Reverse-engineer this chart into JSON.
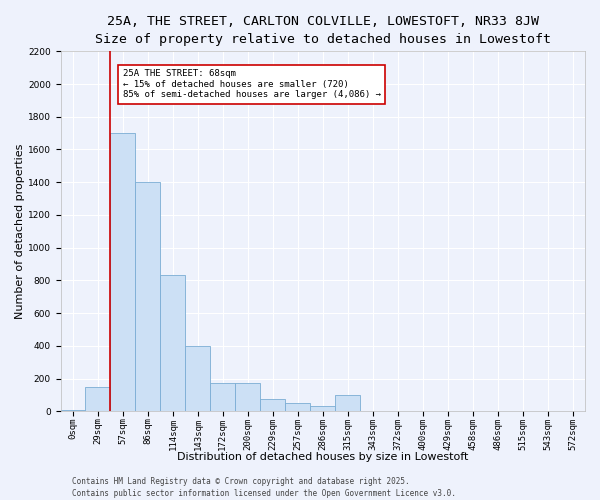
{
  "title_line1": "25A, THE STREET, CARLTON COLVILLE, LOWESTOFT, NR33 8JW",
  "title_line2": "Size of property relative to detached houses in Lowestoft",
  "xlabel": "Distribution of detached houses by size in Lowestoft",
  "ylabel": "Number of detached properties",
  "bar_color": "#cce0f5",
  "bar_edge_color": "#7aadd4",
  "categories": [
    "0sqm",
    "29sqm",
    "57sqm",
    "86sqm",
    "114sqm",
    "143sqm",
    "172sqm",
    "200sqm",
    "229sqm",
    "257sqm",
    "286sqm",
    "315sqm",
    "343sqm",
    "372sqm",
    "400sqm",
    "429sqm",
    "458sqm",
    "486sqm",
    "515sqm",
    "543sqm",
    "572sqm"
  ],
  "values": [
    10,
    150,
    1700,
    1400,
    830,
    400,
    170,
    170,
    75,
    50,
    30,
    100,
    0,
    0,
    0,
    0,
    0,
    0,
    0,
    0,
    0
  ],
  "ylim": [
    0,
    2200
  ],
  "yticks": [
    0,
    200,
    400,
    600,
    800,
    1000,
    1200,
    1400,
    1600,
    1800,
    2000,
    2200
  ],
  "vline_x_index": 2,
  "vline_color": "#cc0000",
  "annot_line1": "25A THE STREET: 68sqm",
  "annot_line2": "← 15% of detached houses are smaller (720)",
  "annot_line3": "85% of semi-detached houses are larger (4,086) →",
  "annotation_box_color": "#ffffff",
  "annotation_box_edge": "#cc0000",
  "footer_line1": "Contains HM Land Registry data © Crown copyright and database right 2025.",
  "footer_line2": "Contains public sector information licensed under the Open Government Licence v3.0.",
  "background_color": "#eef2fc",
  "grid_color": "#ffffff",
  "title_fontsize": 9.5,
  "subtitle_fontsize": 8.5,
  "axis_label_fontsize": 8,
  "tick_fontsize": 6.5,
  "footer_fontsize": 5.5,
  "annot_fontsize": 6.5
}
